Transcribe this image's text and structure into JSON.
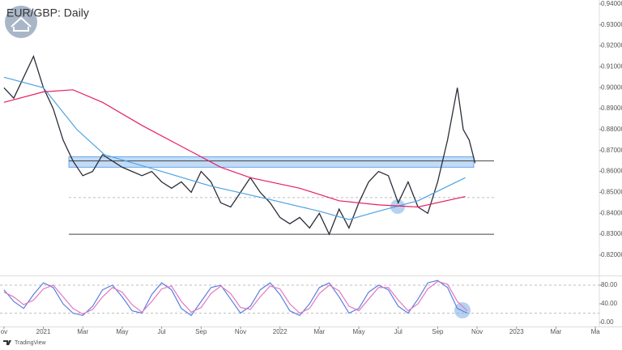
{
  "chart_data": [
    {
      "type": "line",
      "title": "EUR/GBP: Daily",
      "source": "TradingView",
      "xlim": [
        -0.2,
        30.2
      ],
      "ylim": [
        0.8103,
        0.9419
      ],
      "yticks": [
        {
          "value": 0.94,
          "label": "0.94000"
        },
        {
          "value": 0.93,
          "label": "0.93000"
        },
        {
          "value": 0.92,
          "label": "0.92000"
        },
        {
          "value": 0.91,
          "label": "0.91000"
        },
        {
          "value": 0.9,
          "label": "0.90000"
        },
        {
          "value": 0.89,
          "label": "0.89000"
        },
        {
          "value": 0.88,
          "label": "0.88000"
        },
        {
          "value": 0.87,
          "label": "0.87000"
        },
        {
          "value": 0.86,
          "label": "0.86000"
        },
        {
          "value": 0.85,
          "label": "0.85000"
        },
        {
          "value": 0.84,
          "label": "0.84000"
        },
        {
          "value": 0.83,
          "label": "0.83000"
        },
        {
          "value": 0.82,
          "label": "0.82000"
        }
      ],
      "series": [
        {
          "color": "#2a2e39",
          "x": [
            0,
            0.5,
            1,
            1.5,
            2,
            2.5,
            3,
            3.5,
            4,
            4.5,
            5,
            5.5,
            6,
            6.5,
            7,
            7.5,
            8,
            8.5,
            9,
            9.5,
            10,
            10.5,
            11,
            11.5,
            12,
            12.5,
            13,
            13.5,
            14,
            14.5,
            15,
            15.5,
            16,
            16.5,
            17,
            17.5,
            18,
            18.5,
            19,
            19.5,
            20,
            20.5,
            21,
            21.5,
            22,
            22.5,
            23,
            23.3,
            23.6,
            23.9
          ],
          "values": [
            0.9,
            0.895,
            0.905,
            0.915,
            0.9,
            0.89,
            0.875,
            0.865,
            0.858,
            0.86,
            0.868,
            0.865,
            0.862,
            0.86,
            0.858,
            0.86,
            0.855,
            0.852,
            0.855,
            0.85,
            0.86,
            0.855,
            0.845,
            0.843,
            0.85,
            0.857,
            0.85,
            0.845,
            0.838,
            0.835,
            0.838,
            0.833,
            0.84,
            0.83,
            0.842,
            0.833,
            0.845,
            0.855,
            0.86,
            0.858,
            0.845,
            0.855,
            0.843,
            0.84,
            0.855,
            0.875,
            0.9,
            0.88,
            0.875,
            0.864
          ]
        },
        {
          "color": "#4ea3e0",
          "x": [
            0,
            2,
            3.7,
            5.1,
            8,
            10.5,
            13.3,
            16,
            17.5,
            19,
            21,
            23.4
          ],
          "values": [
            0.905,
            0.9,
            0.88,
            0.868,
            0.86,
            0.853,
            0.847,
            0.841,
            0.837,
            0.841,
            0.846,
            0.857
          ]
        },
        {
          "color": "#e91e63",
          "x": [
            0,
            2,
            3.5,
            5,
            7,
            9,
            11,
            12.5,
            15,
            17,
            19,
            21,
            23.4
          ],
          "values": [
            0.893,
            0.898,
            0.899,
            0.893,
            0.882,
            0.872,
            0.862,
            0.857,
            0.852,
            0.846,
            0.844,
            0.843,
            0.848
          ]
        }
      ],
      "zone": [
        0.862,
        0.867
      ],
      "hlines": [
        {
          "value": 0.865,
          "style": "solid"
        },
        {
          "value": 0.8475,
          "style": "dashed"
        },
        {
          "value": 0.83,
          "style": "solid"
        }
      ]
    },
    {
      "type": "line",
      "xlim": [
        -0.2,
        30.2
      ],
      "ylim": [
        -8.7,
        99.1
      ],
      "yticks": [
        {
          "value": 80,
          "label": "80.00"
        },
        {
          "value": 40,
          "label": "40.00"
        },
        {
          "value": 0,
          "label": "0.00"
        }
      ],
      "hlines": [
        {
          "value": 80,
          "style": "dashed"
        },
        {
          "value": 20,
          "style": "dashed"
        }
      ],
      "xticks": [
        {
          "value": 0,
          "label": "ov"
        },
        {
          "value": 2,
          "label": "2021"
        },
        {
          "value": 4,
          "label": "Mar"
        },
        {
          "value": 6,
          "label": "May"
        },
        {
          "value": 8,
          "label": "Jul"
        },
        {
          "value": 10,
          "label": "Sep"
        },
        {
          "value": 12,
          "label": "Nov"
        },
        {
          "value": 14,
          "label": "2022"
        },
        {
          "value": 16,
          "label": "Mar"
        },
        {
          "value": 18,
          "label": "May"
        },
        {
          "value": 20,
          "label": "Jul"
        },
        {
          "value": 22,
          "label": "Sep"
        },
        {
          "value": 24,
          "label": "Nov"
        },
        {
          "value": 26,
          "label": "2023"
        },
        {
          "value": 28,
          "label": "Mar"
        },
        {
          "value": 30,
          "label": "Ma"
        }
      ],
      "x": [
        0,
        0.5,
        1,
        1.5,
        2,
        2.5,
        3,
        3.5,
        4,
        4.5,
        5,
        5.5,
        6,
        6.5,
        7,
        7.5,
        8,
        8.5,
        9,
        9.5,
        10,
        10.5,
        11,
        11.5,
        12,
        12.5,
        13,
        13.5,
        14,
        14.5,
        15,
        15.5,
        16,
        16.5,
        17,
        17.5,
        18,
        18.5,
        19,
        19.5,
        20,
        20.5,
        21,
        21.5,
        22,
        22.5,
        23,
        23.5
      ],
      "series": [
        {
          "color": "#5b7fe0",
          "values": [
            70,
            45,
            30,
            60,
            85,
            75,
            40,
            20,
            15,
            35,
            70,
            80,
            55,
            25,
            20,
            60,
            85,
            70,
            30,
            15,
            45,
            75,
            80,
            50,
            20,
            35,
            70,
            85,
            60,
            25,
            15,
            40,
            75,
            85,
            55,
            20,
            30,
            65,
            80,
            70,
            35,
            20,
            50,
            85,
            90,
            75,
            30,
            20
          ]
        },
        {
          "color": "#e377c2",
          "values": [
            65,
            55,
            38,
            48,
            72,
            80,
            55,
            30,
            18,
            28,
            55,
            75,
            65,
            38,
            22,
            45,
            72,
            78,
            45,
            22,
            32,
            62,
            78,
            62,
            32,
            28,
            55,
            78,
            72,
            40,
            20,
            30,
            62,
            80,
            68,
            35,
            25,
            50,
            75,
            75,
            48,
            25,
            40,
            72,
            88,
            82,
            45,
            25
          ]
        }
      ]
    }
  ]
}
